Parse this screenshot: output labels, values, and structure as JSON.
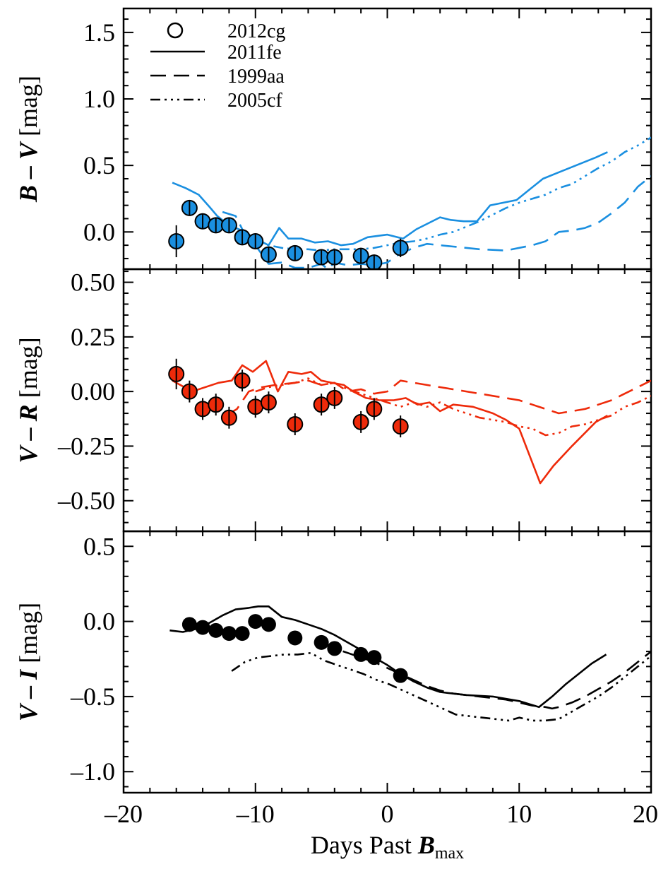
{
  "chart_data": [
    {
      "type": "line",
      "panel": "top",
      "ylabel_parts": [
        {
          "t": "B",
          "bi": true
        },
        {
          "t": " – ",
          "bi": true
        },
        {
          "t": "V",
          "bi": true
        },
        {
          "t": " [mag]",
          "bi": false
        }
      ],
      "xlim": [
        -20,
        20
      ],
      "ylim": [
        -0.28,
        1.68
      ],
      "yticks": [
        1.5,
        1.0,
        0.5,
        0.0
      ],
      "ytick_labels": [
        "1.5",
        "1.0",
        "0.5",
        "0.0"
      ],
      "color": "#1a8fe0",
      "legend": {
        "placement": "top-left",
        "entries": [
          {
            "label": "2012cg",
            "style": "marker"
          },
          {
            "label": "2011fe",
            "style": "solid"
          },
          {
            "label": "1999aa",
            "style": "dashed"
          },
          {
            "label": "2005cf",
            "style": "dashdotdotdot"
          }
        ]
      },
      "points": [
        {
          "x": -16.0,
          "y": -0.07,
          "err": 0.12
        },
        {
          "x": -15.0,
          "y": 0.18,
          "err": 0.06
        },
        {
          "x": -14.0,
          "y": 0.08,
          "err": 0.06
        },
        {
          "x": -13.0,
          "y": 0.05,
          "err": 0.05
        },
        {
          "x": -12.0,
          "y": 0.05,
          "err": 0.05
        },
        {
          "x": -11.0,
          "y": -0.04,
          "err": 0.05
        },
        {
          "x": -10.0,
          "y": -0.07,
          "err": 0.05
        },
        {
          "x": -9.0,
          "y": -0.17,
          "err": 0.06
        },
        {
          "x": -7.0,
          "y": -0.16,
          "err": 0.05
        },
        {
          "x": -5.0,
          "y": -0.19,
          "err": 0.06
        },
        {
          "x": -4.0,
          "y": -0.19,
          "err": 0.06
        },
        {
          "x": -2.0,
          "y": -0.18,
          "err": 0.06
        },
        {
          "x": -1.0,
          "y": -0.23,
          "err": 0.06
        },
        {
          "x": 1.0,
          "y": -0.12,
          "err": 0.07
        }
      ],
      "series": [
        {
          "style": "solid",
          "x": [
            -16.3,
            -15.3,
            -14.3,
            -13.5,
            -12.9,
            -12,
            -11,
            -10,
            -9,
            -8.2,
            -7.5,
            -6.5,
            -5.5,
            -4.5,
            -3.5,
            -2.6,
            -1.5,
            0,
            1.2,
            2.2,
            3.2,
            4,
            4.8,
            5.8,
            6.8,
            7.8,
            8.8,
            9.8,
            10.8,
            11.8,
            12.8,
            13.8,
            14.8,
            15.8,
            16.7
          ],
          "y": [
            0.37,
            0.33,
            0.28,
            0.19,
            0.12,
            0.05,
            0.01,
            -0.05,
            -0.1,
            0.03,
            -0.05,
            -0.05,
            -0.08,
            -0.07,
            -0.1,
            -0.09,
            -0.04,
            -0.02,
            -0.05,
            0.02,
            0.07,
            0.11,
            0.09,
            0.08,
            0.08,
            0.2,
            0.22,
            0.24,
            0.32,
            0.4,
            0.44,
            0.48,
            0.52,
            0.56,
            0.6
          ]
        },
        {
          "style": "dashed",
          "x": [
            -12.5,
            -11.5,
            -11,
            -10.4,
            -10,
            -9,
            -8,
            -7,
            -6,
            -5,
            -4.5,
            -4,
            -3,
            -2,
            -1,
            0,
            1,
            2,
            3,
            5,
            7,
            9,
            11,
            12,
            13,
            14,
            15,
            16,
            17,
            18,
            19,
            20
          ],
          "y": [
            0.15,
            0.12,
            0.02,
            -0.04,
            -0.1,
            -0.24,
            -0.23,
            -0.27,
            -0.27,
            -0.24,
            -0.28,
            -0.23,
            -0.25,
            -0.24,
            -0.25,
            -0.23,
            -0.16,
            -0.12,
            -0.09,
            -0.11,
            -0.13,
            -0.14,
            -0.1,
            -0.07,
            0.0,
            0.01,
            0.03,
            0.07,
            0.14,
            0.22,
            0.34,
            0.42
          ]
        },
        {
          "style": "dashdotdotdot",
          "x": [
            -11,
            -10,
            -9,
            -8,
            -7,
            -6,
            -5,
            -4,
            -3,
            -2,
            -1,
            0,
            1,
            2,
            3,
            4,
            5,
            6,
            7,
            8,
            9,
            10,
            11,
            12,
            13,
            14,
            15,
            16,
            17,
            18,
            19,
            20
          ],
          "y": [
            -0.03,
            -0.08,
            -0.1,
            -0.12,
            -0.13,
            -0.13,
            -0.14,
            -0.13,
            -0.13,
            -0.13,
            -0.12,
            -0.1,
            -0.08,
            -0.07,
            -0.05,
            -0.02,
            0.0,
            0.04,
            0.08,
            0.13,
            0.18,
            0.22,
            0.25,
            0.28,
            0.33,
            0.36,
            0.42,
            0.48,
            0.53,
            0.6,
            0.65,
            0.71
          ]
        }
      ]
    },
    {
      "type": "line",
      "panel": "middle",
      "ylabel_parts": [
        {
          "t": "V",
          "bi": true
        },
        {
          "t": " – ",
          "bi": true
        },
        {
          "t": "R",
          "bi": true
        },
        {
          "t": " [mag]",
          "bi": false
        }
      ],
      "xlim": [
        -20,
        20
      ],
      "ylim": [
        -0.64,
        0.56
      ],
      "yticks": [
        0.5,
        0.25,
        0.0,
        -0.25,
        -0.5
      ],
      "ytick_labels": [
        "0.50",
        "0.25",
        "0.00",
        "–0.25",
        "–0.50"
      ],
      "color": "#ee2a0a",
      "points": [
        {
          "x": -16.0,
          "y": 0.08,
          "err": 0.07
        },
        {
          "x": -15.0,
          "y": 0.0,
          "err": 0.05
        },
        {
          "x": -14.0,
          "y": -0.08,
          "err": 0.05
        },
        {
          "x": -13.0,
          "y": -0.06,
          "err": 0.05
        },
        {
          "x": -12.0,
          "y": -0.12,
          "err": 0.05
        },
        {
          "x": -11.0,
          "y": 0.05,
          "err": 0.05
        },
        {
          "x": -10.0,
          "y": -0.07,
          "err": 0.05
        },
        {
          "x": -9.0,
          "y": -0.05,
          "err": 0.05
        },
        {
          "x": -7.0,
          "y": -0.15,
          "err": 0.05
        },
        {
          "x": -5.0,
          "y": -0.06,
          "err": 0.05
        },
        {
          "x": -4.0,
          "y": -0.03,
          "err": 0.05
        },
        {
          "x": -2.0,
          "y": -0.14,
          "err": 0.05
        },
        {
          "x": -1.0,
          "y": -0.08,
          "err": 0.05
        },
        {
          "x": 1.0,
          "y": -0.16,
          "err": 0.05
        }
      ],
      "series": [
        {
          "style": "solid",
          "x": [
            -16.3,
            -14.8,
            -12.8,
            -11.8,
            -11,
            -10.2,
            -9.2,
            -8.3,
            -7.5,
            -6.5,
            -5.8,
            -5,
            -4.2,
            -3.3,
            -2.6,
            -1.6,
            -0.6,
            0.5,
            1.4,
            2.3,
            3.2,
            4,
            5,
            6.5,
            8,
            9,
            10,
            11.6,
            12.6,
            14,
            15.8,
            16.7
          ],
          "y": [
            0.05,
            0.0,
            0.04,
            0.05,
            0.12,
            0.09,
            0.14,
            0.0,
            0.09,
            0.08,
            0.09,
            0.05,
            0.04,
            0.03,
            0.0,
            -0.03,
            -0.04,
            -0.04,
            -0.03,
            -0.06,
            -0.05,
            -0.09,
            -0.06,
            -0.07,
            -0.1,
            -0.13,
            -0.17,
            -0.42,
            -0.34,
            -0.25,
            -0.14,
            -0.11
          ]
        },
        {
          "style": "dashed",
          "x": [
            -12.2,
            -11.4,
            -10.5,
            -9.5,
            -8.5,
            -7,
            -6,
            -5,
            -4,
            -3,
            -2,
            -1,
            0,
            1,
            2,
            3,
            4,
            6,
            8,
            10,
            11,
            12,
            13,
            14,
            15,
            16,
            17,
            18,
            19,
            20
          ],
          "y": [
            -0.11,
            -0.08,
            0.0,
            0.02,
            0.03,
            0.04,
            0.05,
            0.03,
            0.04,
            0.0,
            0.01,
            -0.01,
            0.0,
            0.05,
            0.04,
            0.03,
            0.02,
            0.0,
            -0.02,
            -0.04,
            -0.06,
            -0.08,
            -0.1,
            -0.09,
            -0.08,
            -0.06,
            -0.04,
            -0.01,
            0.02,
            0.05
          ]
        },
        {
          "style": "dashdotdotdot",
          "x": [
            -10,
            -9,
            -8,
            -7,
            -6,
            -5,
            -4,
            -3,
            -2,
            -1,
            0,
            1,
            2,
            3,
            4,
            5,
            6,
            7,
            8,
            9,
            10,
            11,
            12,
            13,
            14,
            15,
            16,
            17,
            18,
            19,
            20
          ],
          "y": [
            0.0,
            0.02,
            0.03,
            0.04,
            0.06,
            0.03,
            0.04,
            0.01,
            -0.01,
            -0.03,
            -0.05,
            -0.07,
            -0.05,
            -0.07,
            -0.05,
            -0.08,
            -0.1,
            -0.12,
            -0.13,
            -0.14,
            -0.16,
            -0.17,
            -0.2,
            -0.19,
            -0.16,
            -0.15,
            -0.13,
            -0.11,
            -0.07,
            -0.05,
            -0.02
          ]
        }
      ]
    },
    {
      "type": "line",
      "panel": "bottom",
      "ylabel_parts": [
        {
          "t": "V",
          "bi": true
        },
        {
          "t": " – ",
          "bi": true
        },
        {
          "t": "I",
          "bi": true
        },
        {
          "t": " [mag]",
          "bi": false
        }
      ],
      "xlim": [
        -20,
        20
      ],
      "ylim": [
        -1.14,
        0.6
      ],
      "yticks": [
        0.5,
        0.0,
        -0.5,
        -1.0
      ],
      "ytick_labels": [
        "0.5",
        "0.0",
        "–0.5",
        "–1.0"
      ],
      "xticks": [
        -20,
        -10,
        0,
        10,
        20
      ],
      "xtick_labels": [
        "–20",
        "–10",
        "0",
        "10",
        "20"
      ],
      "xlabel_parts": [
        {
          "t": "Days Past ",
          "bi": false
        },
        {
          "t": "B",
          "bi": true
        },
        {
          "t": "max",
          "sub": true
        }
      ],
      "color": "#000000",
      "points": [
        {
          "x": -15.0,
          "y": -0.02
        },
        {
          "x": -14.0,
          "y": -0.04
        },
        {
          "x": -13.0,
          "y": -0.06
        },
        {
          "x": -12.0,
          "y": -0.08
        },
        {
          "x": -11.0,
          "y": -0.08
        },
        {
          "x": -10.0,
          "y": 0.0
        },
        {
          "x": -9.0,
          "y": -0.02
        },
        {
          "x": -7.0,
          "y": -0.11
        },
        {
          "x": -5.0,
          "y": -0.14
        },
        {
          "x": -4.0,
          "y": -0.18
        },
        {
          "x": -2.0,
          "y": -0.22
        },
        {
          "x": -1.0,
          "y": -0.24
        },
        {
          "x": 1.0,
          "y": -0.36
        }
      ],
      "series": [
        {
          "style": "solid",
          "x": [
            -16.5,
            -15.5,
            -14.5,
            -13.5,
            -12.5,
            -11.5,
            -10.5,
            -9.8,
            -9,
            -8,
            -7,
            -6,
            -5,
            -4,
            -3,
            -2,
            -1,
            0,
            1,
            2,
            3,
            4,
            5,
            6,
            8,
            10,
            11.5,
            12.5,
            13.5,
            14.5,
            15.5,
            16.6
          ],
          "y": [
            -0.06,
            -0.07,
            -0.05,
            -0.01,
            0.04,
            0.08,
            0.09,
            0.1,
            0.1,
            0.03,
            0.01,
            -0.02,
            -0.05,
            -0.09,
            -0.14,
            -0.19,
            -0.24,
            -0.29,
            -0.35,
            -0.4,
            -0.44,
            -0.47,
            -0.48,
            -0.49,
            -0.5,
            -0.53,
            -0.57,
            -0.5,
            -0.42,
            -0.35,
            -0.28,
            -0.22
          ]
        },
        {
          "style": "dashed",
          "x": [
            -5,
            -4,
            -3,
            -2,
            -1,
            0,
            1,
            2,
            3,
            4,
            5,
            6,
            7,
            8,
            9,
            10,
            11,
            12,
            12.5,
            13,
            14,
            15,
            16,
            17,
            18,
            19,
            20
          ],
          "y": [
            -0.14,
            -0.18,
            -0.21,
            -0.24,
            -0.27,
            -0.31,
            -0.35,
            -0.39,
            -0.43,
            -0.46,
            -0.48,
            -0.49,
            -0.5,
            -0.51,
            -0.52,
            -0.54,
            -0.56,
            -0.57,
            -0.58,
            -0.57,
            -0.54,
            -0.5,
            -0.45,
            -0.4,
            -0.34,
            -0.27,
            -0.2
          ]
        },
        {
          "style": "dashdotdotdot",
          "x": [
            -11.8,
            -10.8,
            -9.8,
            -8.8,
            -7.8,
            -6.8,
            -5.8,
            -4.8,
            -3.8,
            -2.8,
            -1.8,
            -0.8,
            0.2,
            1.2,
            2.2,
            3.2,
            4.2,
            5.2,
            6.2,
            7.2,
            8.2,
            9.2,
            10,
            11,
            12,
            13,
            14,
            15,
            16,
            17,
            18,
            19,
            20
          ],
          "y": [
            -0.33,
            -0.27,
            -0.24,
            -0.23,
            -0.22,
            -0.22,
            -0.21,
            -0.26,
            -0.29,
            -0.32,
            -0.35,
            -0.39,
            -0.42,
            -0.46,
            -0.5,
            -0.54,
            -0.58,
            -0.62,
            -0.63,
            -0.64,
            -0.65,
            -0.66,
            -0.64,
            -0.66,
            -0.66,
            -0.65,
            -0.6,
            -0.55,
            -0.5,
            -0.44,
            -0.37,
            -0.3,
            -0.23
          ]
        }
      ]
    }
  ]
}
